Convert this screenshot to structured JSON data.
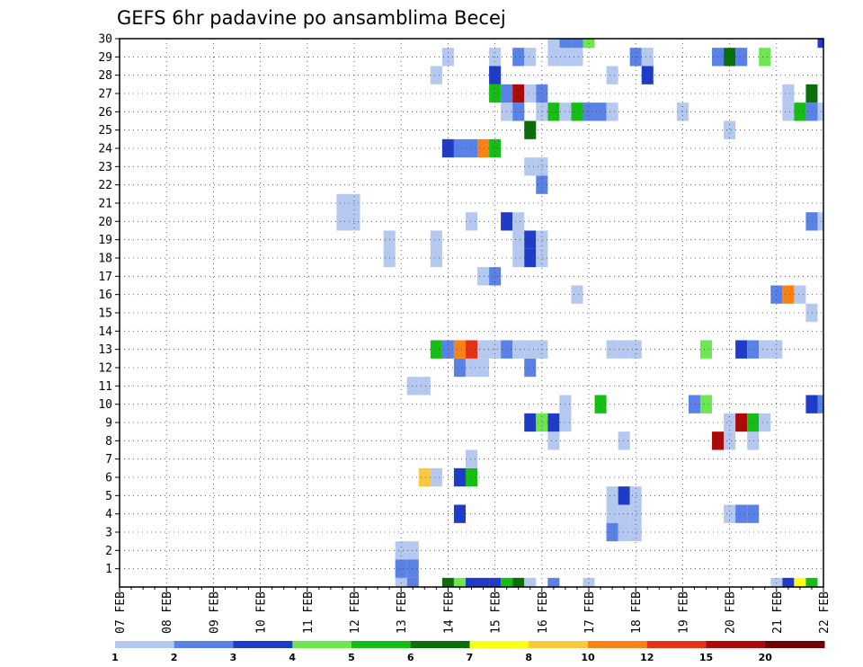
{
  "chart_data": {
    "type": "heatmap",
    "title": "GEFS 6hr padavine po ansamblima Becej",
    "xlabel": "",
    "ylabel": "",
    "x_tick_labels": [
      "07 FEB",
      "08 FEB",
      "09 FEB",
      "10 FEB",
      "11 FEB",
      "12 FEB",
      "13 FEB",
      "14 FEB",
      "15 FEB",
      "16 FEB",
      "17 FEB",
      "18 FEB",
      "19 FEB",
      "20 FEB",
      "21 FEB",
      "22 FEB"
    ],
    "xlim": [
      0,
      60
    ],
    "x_unit": "6h steps from 07 FEB 00z",
    "y_tick_labels": [
      "1",
      "2",
      "3",
      "4",
      "5",
      "6",
      "7",
      "8",
      "9",
      "10",
      "11",
      "12",
      "13",
      "14",
      "15",
      "16",
      "17",
      "18",
      "19",
      "20",
      "21",
      "22",
      "23",
      "24",
      "25",
      "26",
      "27",
      "28",
      "29",
      "30"
    ],
    "ylim": [
      0,
      30
    ],
    "grid": true,
    "legend": {
      "placement": "bottom",
      "thresholds": [
        "1",
        "2",
        "3",
        "4",
        "5",
        "6",
        "7",
        "8",
        "10",
        "12",
        "15",
        "20"
      ],
      "colors": [
        "#b4c8f0",
        "#5a82e6",
        "#1e3cc8",
        "#6ee650",
        "#14be14",
        "#0a6e0a",
        "#ffff14",
        "#fac83c",
        "#fa8214",
        "#e63214",
        "#aa0a0a",
        "#6e0000"
      ]
    },
    "cells": [
      [
        24,
        0,
        1
      ],
      [
        25,
        0,
        2
      ],
      [
        28,
        0,
        6
      ],
      [
        29,
        0,
        4
      ],
      [
        30,
        0,
        3
      ],
      [
        31,
        0,
        3
      ],
      [
        32,
        0,
        3
      ],
      [
        33,
        0,
        5
      ],
      [
        34,
        0,
        6
      ],
      [
        35,
        0,
        1
      ],
      [
        37,
        0,
        2
      ],
      [
        40,
        0,
        1
      ],
      [
        56,
        0,
        1
      ],
      [
        57,
        0,
        3
      ],
      [
        58,
        0,
        7
      ],
      [
        59,
        0,
        5
      ],
      [
        24,
        1,
        2
      ],
      [
        25,
        1,
        2
      ],
      [
        24,
        2,
        1
      ],
      [
        25,
        2,
        1
      ],
      [
        29,
        4,
        3
      ],
      [
        42,
        4,
        1
      ],
      [
        43,
        4,
        1
      ],
      [
        44,
        4,
        1
      ],
      [
        52,
        4,
        1
      ],
      [
        53,
        4,
        2
      ],
      [
        54,
        4,
        2
      ],
      [
        42,
        5,
        1
      ],
      [
        43,
        5,
        3
      ],
      [
        44,
        5,
        1
      ],
      [
        42,
        3,
        2
      ],
      [
        43,
        3,
        1
      ],
      [
        44,
        3,
        1
      ],
      [
        29,
        6,
        3
      ],
      [
        30,
        6,
        5
      ],
      [
        26,
        6,
        8
      ],
      [
        27,
        6,
        1
      ],
      [
        30,
        7,
        1
      ],
      [
        37,
        8,
        1
      ],
      [
        43,
        8,
        1
      ],
      [
        51,
        8,
        11
      ],
      [
        52,
        8,
        1
      ],
      [
        54,
        8,
        1
      ],
      [
        35,
        9,
        3
      ],
      [
        36,
        9,
        4
      ],
      [
        37,
        9,
        3
      ],
      [
        38,
        9,
        1
      ],
      [
        52,
        9,
        1
      ],
      [
        53,
        9,
        11
      ],
      [
        54,
        9,
        5
      ],
      [
        55,
        9,
        1
      ],
      [
        38,
        10,
        1
      ],
      [
        41,
        10,
        5
      ],
      [
        49,
        10,
        2
      ],
      [
        50,
        10,
        4
      ],
      [
        59,
        10,
        3
      ],
      [
        60,
        10,
        2
      ],
      [
        25,
        11,
        1
      ],
      [
        26,
        11,
        1
      ],
      [
        29,
        12,
        2
      ],
      [
        30,
        12,
        1
      ],
      [
        31,
        12,
        1
      ],
      [
        35,
        12,
        2
      ],
      [
        27,
        13,
        5
      ],
      [
        28,
        13,
        2
      ],
      [
        29,
        13,
        9
      ],
      [
        30,
        13,
        10
      ],
      [
        31,
        13,
        1
      ],
      [
        32,
        13,
        1
      ],
      [
        33,
        13,
        2
      ],
      [
        34,
        13,
        1
      ],
      [
        35,
        13,
        1
      ],
      [
        36,
        13,
        1
      ],
      [
        42,
        13,
        1
      ],
      [
        43,
        13,
        1
      ],
      [
        44,
        13,
        1
      ],
      [
        50,
        13,
        4
      ],
      [
        53,
        13,
        3
      ],
      [
        54,
        13,
        2
      ],
      [
        55,
        13,
        1
      ],
      [
        56,
        13,
        1
      ],
      [
        59,
        15,
        1
      ],
      [
        39,
        16,
        1
      ],
      [
        56,
        16,
        2
      ],
      [
        57,
        16,
        9
      ],
      [
        58,
        16,
        1
      ],
      [
        31,
        17,
        1
      ],
      [
        32,
        17,
        2
      ],
      [
        23,
        18,
        1
      ],
      [
        27,
        18,
        1
      ],
      [
        34,
        18,
        1
      ],
      [
        35,
        18,
        3
      ],
      [
        36,
        18,
        1
      ],
      [
        23,
        19,
        1
      ],
      [
        27,
        19,
        1
      ],
      [
        34,
        19,
        1
      ],
      [
        35,
        19,
        3
      ],
      [
        36,
        19,
        1
      ],
      [
        19,
        20,
        1
      ],
      [
        20,
        20,
        1
      ],
      [
        30,
        20,
        1
      ],
      [
        33,
        20,
        3
      ],
      [
        34,
        20,
        1
      ],
      [
        59,
        20,
        2
      ],
      [
        60,
        20,
        1
      ],
      [
        19,
        21,
        1
      ],
      [
        20,
        21,
        1
      ],
      [
        36,
        22,
        2
      ],
      [
        35,
        23,
        1
      ],
      [
        36,
        23,
        1
      ],
      [
        28,
        24,
        3
      ],
      [
        29,
        24,
        2
      ],
      [
        30,
        24,
        2
      ],
      [
        31,
        24,
        9
      ],
      [
        32,
        24,
        5
      ],
      [
        35,
        25,
        6
      ],
      [
        52,
        25,
        1
      ],
      [
        33,
        26,
        1
      ],
      [
        34,
        26,
        2
      ],
      [
        36,
        26,
        1
      ],
      [
        37,
        26,
        5
      ],
      [
        38,
        26,
        1
      ],
      [
        39,
        26,
        5
      ],
      [
        40,
        26,
        2
      ],
      [
        41,
        26,
        2
      ],
      [
        42,
        26,
        1
      ],
      [
        48,
        26,
        1
      ],
      [
        57,
        26,
        1
      ],
      [
        58,
        26,
        5
      ],
      [
        59,
        26,
        2
      ],
      [
        60,
        26,
        1
      ],
      [
        32,
        27,
        5
      ],
      [
        33,
        27,
        2
      ],
      [
        34,
        27,
        11
      ],
      [
        35,
        27,
        1
      ],
      [
        36,
        27,
        2
      ],
      [
        57,
        27,
        1
      ],
      [
        59,
        27,
        6
      ],
      [
        27,
        28,
        1
      ],
      [
        32,
        28,
        3
      ],
      [
        42,
        28,
        1
      ],
      [
        45,
        28,
        3
      ],
      [
        28,
        29,
        1
      ],
      [
        32,
        29,
        1
      ],
      [
        34,
        29,
        2
      ],
      [
        35,
        29,
        1
      ],
      [
        37,
        29,
        1
      ],
      [
        38,
        29,
        1
      ],
      [
        39,
        29,
        1
      ],
      [
        44,
        29,
        2
      ],
      [
        45,
        29,
        1
      ],
      [
        51,
        29,
        2
      ],
      [
        52,
        29,
        6
      ],
      [
        53,
        29,
        2
      ],
      [
        55,
        29,
        4
      ],
      [
        37,
        30,
        1
      ],
      [
        38,
        30,
        2
      ],
      [
        39,
        30,
        2
      ],
      [
        40,
        30,
        4
      ],
      [
        60,
        30,
        3
      ]
    ]
  }
}
